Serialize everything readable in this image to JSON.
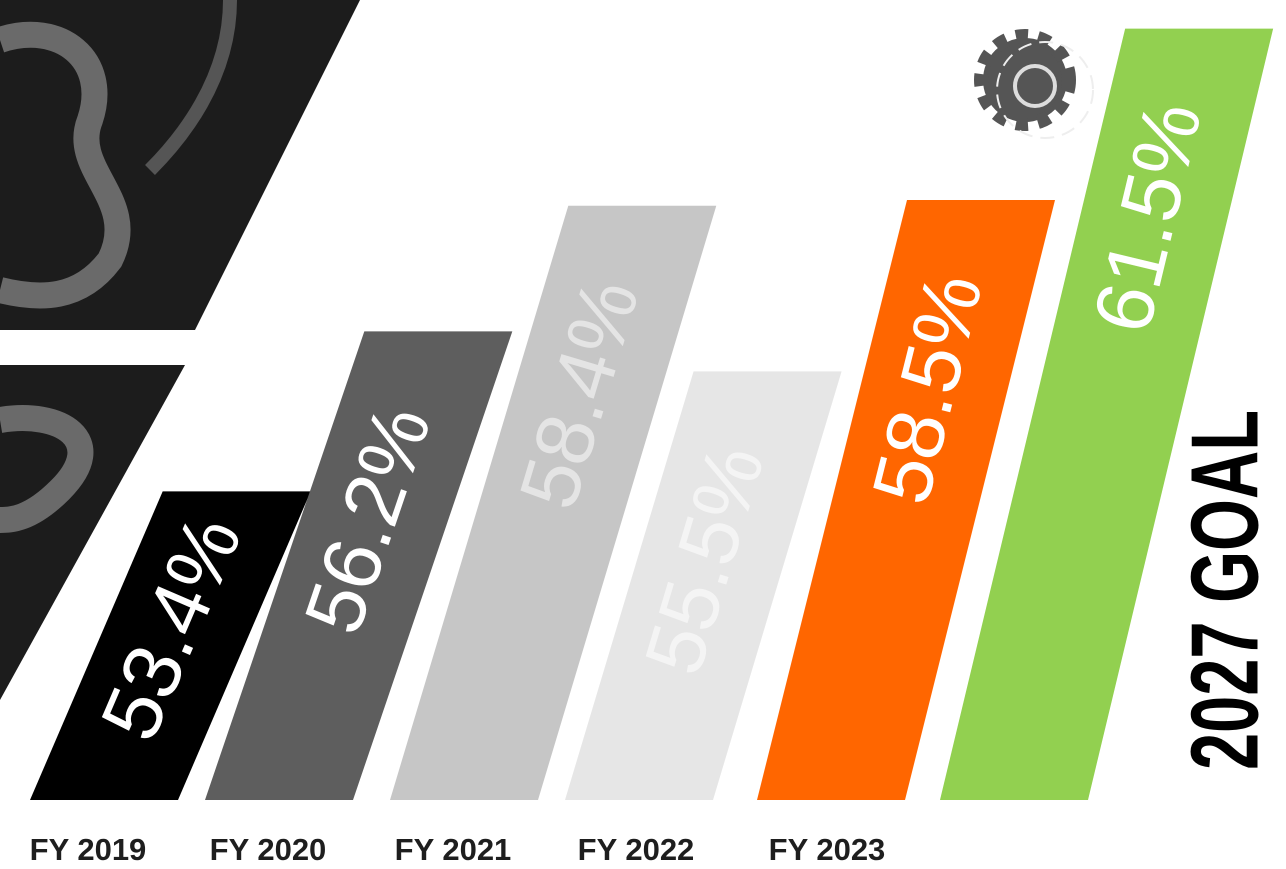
{
  "chart_data": {
    "type": "bar",
    "categories": [
      "FY 2019",
      "FY 2020",
      "FY 2021",
      "FY 2022",
      "FY 2023",
      "2027 GOAL"
    ],
    "values": [
      53.4,
      56.2,
      58.4,
      55.5,
      58.5,
      61.5
    ],
    "value_labels": [
      "53.4%",
      "56.2%",
      "58.4%",
      "55.5%",
      "58.5%",
      "61.5%"
    ],
    "colors": [
      "#000000",
      "#5e5e5e",
      "#c6c6c6",
      "#e6e6e6",
      "#ff6600",
      "#92d050"
    ],
    "ylim": [
      48,
      62
    ]
  }
}
